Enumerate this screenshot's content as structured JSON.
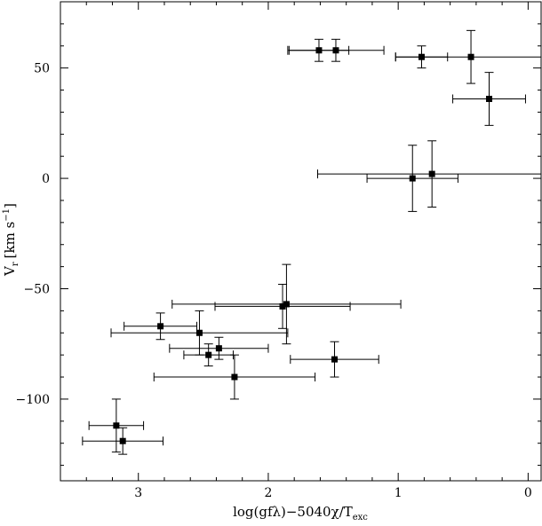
{
  "chart_data": {
    "type": "scatter",
    "title": "",
    "xlabel": {
      "main": "log(gfλ)−5040χ/T",
      "sub": "exc"
    },
    "ylabel": {
      "main": "V",
      "sub": "r",
      "unit": "[km s",
      "sup": "−1",
      "close": "]"
    },
    "xlim": [
      3.6,
      -0.1
    ],
    "ylim": [
      -137,
      80
    ],
    "x_reversed": true,
    "xticks": [
      3,
      2,
      1,
      0
    ],
    "xtick_labels": [
      "3",
      "2",
      "1",
      "0"
    ],
    "yticks": [
      50,
      0,
      -50,
      -100
    ],
    "ytick_labels": [
      "50",
      "0",
      "−50",
      "−100"
    ],
    "grid": false,
    "legend": "none",
    "points": [
      {
        "x": 1.61,
        "y": 58,
        "xerr": 0.23,
        "yerr": 5
      },
      {
        "x": 1.48,
        "y": 58,
        "xerr": 0.37,
        "yerr": 5
      },
      {
        "x": 0.82,
        "y": 55,
        "xerr": 0.2,
        "yerr": 5
      },
      {
        "x": 0.44,
        "y": 55,
        "xerr": 0.58,
        "yerr": 12
      },
      {
        "x": 0.3,
        "y": 36,
        "xerr": 0.28,
        "yerr": 12
      },
      {
        "x": 0.89,
        "y": 0,
        "xerr": 0.35,
        "yerr": 15
      },
      {
        "x": 0.74,
        "y": 2,
        "xerr": 0.88,
        "yerr": 15
      },
      {
        "x": 1.89,
        "y": -58,
        "xerr": 0.52,
        "yerr": 10
      },
      {
        "x": 1.86,
        "y": -57,
        "xerr": 0.88,
        "yerr": 18
      },
      {
        "x": 2.83,
        "y": -67,
        "xerr": 0.28,
        "yerr": 6
      },
      {
        "x": 2.53,
        "y": -70,
        "xerr": 0.68,
        "yerr": 10
      },
      {
        "x": 2.46,
        "y": -80,
        "xerr": 0.19,
        "yerr": 5
      },
      {
        "x": 2.38,
        "y": -77,
        "xerr": 0.38,
        "yerr": 5
      },
      {
        "x": 2.26,
        "y": -90,
        "xerr": 0.62,
        "yerr": 10
      },
      {
        "x": 1.49,
        "y": -82,
        "xerr": 0.34,
        "yerr": 8
      },
      {
        "x": 3.17,
        "y": -112,
        "xerr": 0.21,
        "yerr": 12
      },
      {
        "x": 3.12,
        "y": -119,
        "xerr": 0.31,
        "yerr": 6
      }
    ]
  }
}
